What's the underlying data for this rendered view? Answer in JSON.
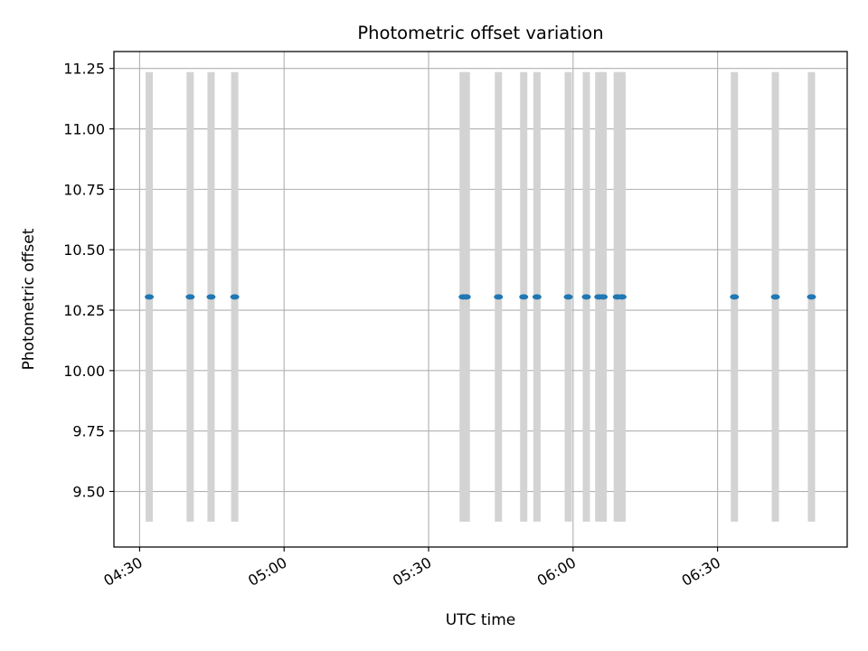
{
  "chart_data": {
    "type": "scatter",
    "title": "Photometric offset variation",
    "xlabel": "UTC time",
    "ylabel": "Photometric offset",
    "xlim": [
      "04:24:40",
      "06:56:55"
    ],
    "ylim": [
      9.27,
      11.32
    ],
    "grid": true,
    "x_ticks": [
      "04:30",
      "05:00",
      "05:30",
      "06:00",
      "06:30"
    ],
    "y_ticks": [
      "9.50",
      "9.75",
      "10.00",
      "10.25",
      "10.50",
      "10.75",
      "11.00",
      "11.25"
    ],
    "colors": {
      "points": "#1f77b4",
      "bands": "#d3d3d3",
      "grid": "#b0b0b0"
    },
    "band_range": [
      9.375,
      11.235
    ],
    "points": [
      {
        "time": "04:32:00",
        "value": 10.305
      },
      {
        "time": "04:40:30",
        "value": 10.305
      },
      {
        "time": "04:44:50",
        "value": 10.305
      },
      {
        "time": "04:49:45",
        "value": 10.305
      },
      {
        "time": "05:37:10",
        "value": 10.305
      },
      {
        "time": "05:37:50",
        "value": 10.305
      },
      {
        "time": "05:44:30",
        "value": 10.305
      },
      {
        "time": "05:49:45",
        "value": 10.305
      },
      {
        "time": "05:52:30",
        "value": 10.305
      },
      {
        "time": "05:59:00",
        "value": 10.305
      },
      {
        "time": "06:02:45",
        "value": 10.305
      },
      {
        "time": "06:05:20",
        "value": 10.305
      },
      {
        "time": "06:06:15",
        "value": 10.305
      },
      {
        "time": "06:09:10",
        "value": 10.305
      },
      {
        "time": "06:10:10",
        "value": 10.305
      },
      {
        "time": "06:33:30",
        "value": 10.305
      },
      {
        "time": "06:42:00",
        "value": 10.305
      },
      {
        "time": "06:49:30",
        "value": 10.305
      }
    ]
  }
}
